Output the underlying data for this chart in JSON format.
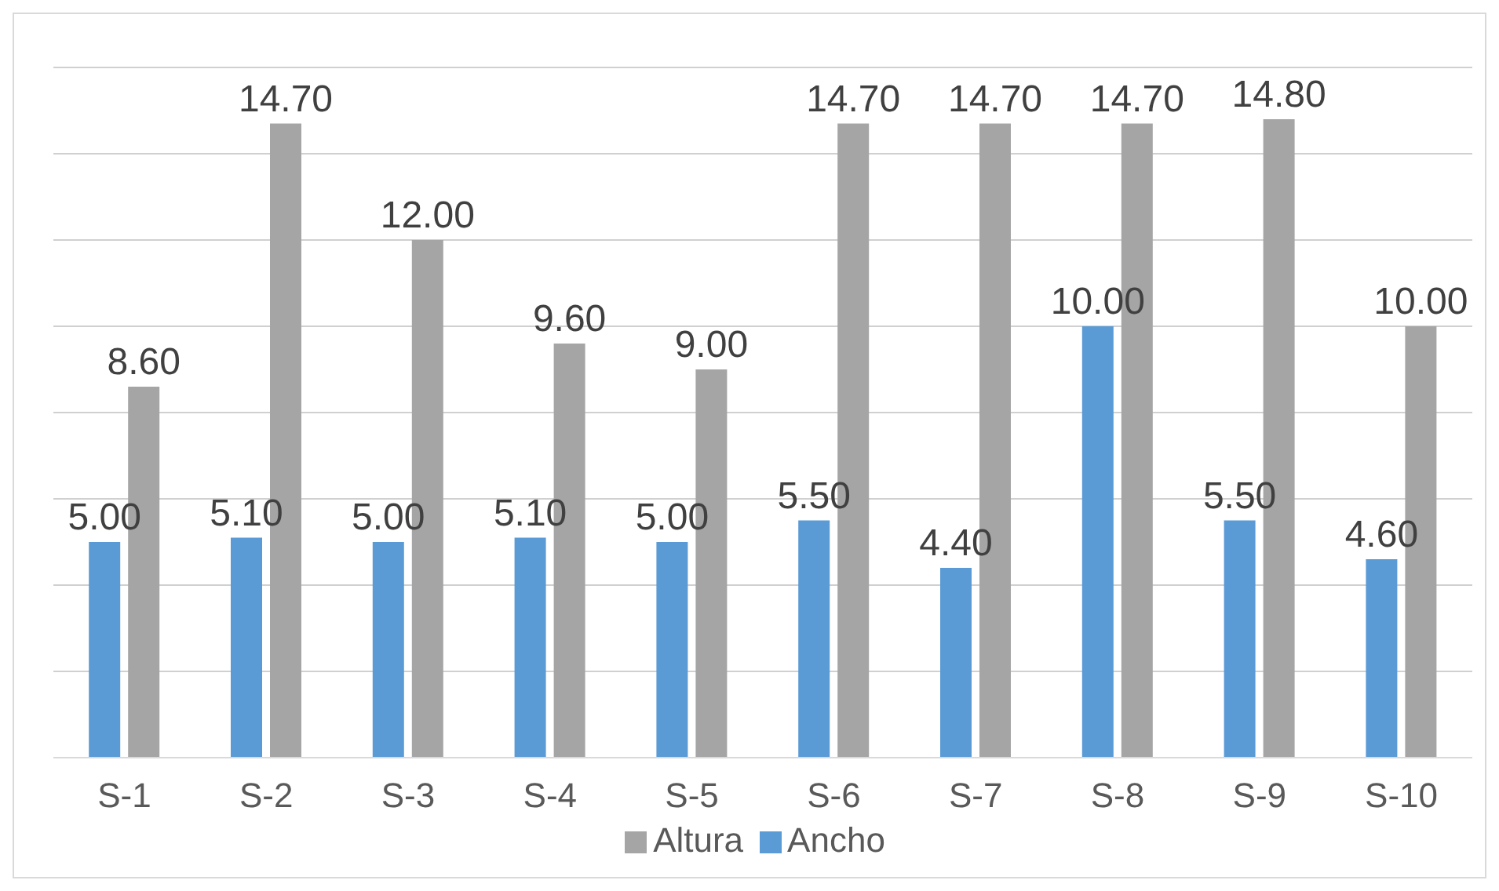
{
  "chart_data": {
    "type": "bar",
    "categories": [
      "S-1",
      "S-2",
      "S-3",
      "S-4",
      "S-5",
      "S-6",
      "S-7",
      "S-8",
      "S-9",
      "S-10"
    ],
    "series": [
      {
        "name": "Ancho",
        "color": "#5b9bd5",
        "values": [
          5.0,
          5.1,
          5.0,
          5.1,
          5.0,
          5.5,
          4.4,
          10.0,
          5.5,
          4.6
        ],
        "value_labels": [
          "5.00",
          "5.10",
          "5.00",
          "5.10",
          "5.00",
          "5.50",
          "4.40",
          "10.00",
          "5.50",
          "4.60"
        ]
      },
      {
        "name": "Altura",
        "color": "#a5a5a5",
        "values": [
          8.6,
          14.7,
          12.0,
          9.6,
          9.0,
          14.7,
          14.7,
          14.7,
          14.8,
          10.0
        ],
        "value_labels": [
          "8.60",
          "14.70",
          "12.00",
          "9.60",
          "9.00",
          "14.70",
          "14.70",
          "14.70",
          "14.80",
          "10.00"
        ]
      }
    ],
    "tick_labels": "x",
    "grid": "y",
    "legend": "bottom"
  }
}
